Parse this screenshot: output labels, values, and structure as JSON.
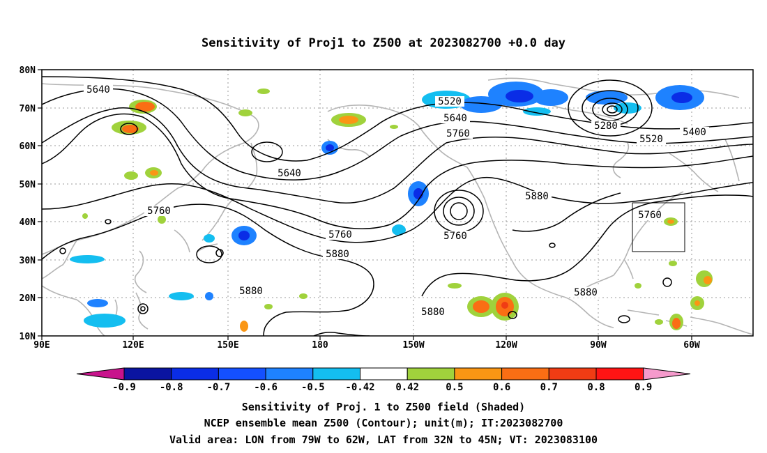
{
  "title": "Sensitivity of Proj1 to Z500 at 2023082700 +0.0 day",
  "axes": {
    "lon_labels": [
      "90E",
      "120E",
      "150E",
      "180",
      "150W",
      "120W",
      "90W",
      "60W"
    ],
    "lat_labels": [
      "80N",
      "70N",
      "60N",
      "50N",
      "40N",
      "30N",
      "20N",
      "10N"
    ]
  },
  "colorbar": {
    "labels": [
      "-0.9",
      "-0.8",
      "-0.7",
      "-0.6",
      "-0.5",
      "-0.42",
      "0.42",
      "0.5",
      "0.6",
      "0.7",
      "0.8",
      "0.9"
    ],
    "colors": [
      "#c8138c",
      "#0a14a0",
      "#0a2de6",
      "#1450ff",
      "#1e82ff",
      "#14bef0",
      "#ffffff",
      "#a0d23c",
      "#fa9614",
      "#fa6e14",
      "#f03c14",
      "#ff1414",
      "#f59acc"
    ]
  },
  "contour_labels": [
    "5640",
    "5520",
    "5640",
    "5760",
    "5280",
    "5520",
    "5400",
    "5640",
    "5760",
    "5760",
    "5880",
    "5760",
    "5760",
    "5880",
    "5880",
    "5880",
    "5880"
  ],
  "captions": {
    "line1": "Sensitivity of Proj. 1 to Z500 field (Shaded)",
    "line2": "NCEP ensemble mean Z500 (Contour); unit(m); IT:2023082700",
    "line3": "Valid area: LON from 79W to 62W, LAT from 32N to 45N; VT: 2023083100"
  },
  "valid_area": {
    "lon_min": -79,
    "lon_max": -62,
    "lat_min": 32,
    "lat_max": 45
  }
}
